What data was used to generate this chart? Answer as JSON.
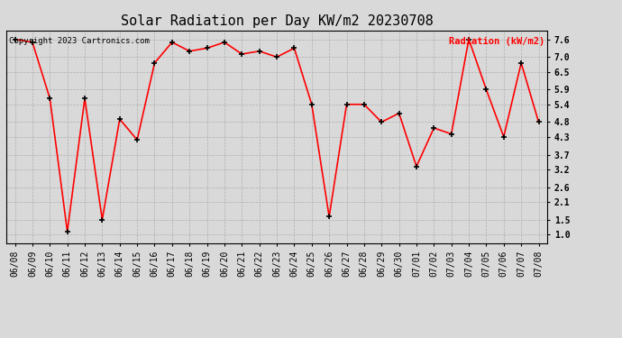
{
  "title": "Solar Radiation per Day KW/m2 20230708",
  "ylabel": "Radiation (kW/m2)",
  "copyright_text": "Copyright 2023 Cartronics.com",
  "dates": [
    "06/08",
    "06/09",
    "06/10",
    "06/11",
    "06/12",
    "06/13",
    "06/14",
    "06/15",
    "06/16",
    "06/17",
    "06/18",
    "06/19",
    "06/20",
    "06/21",
    "06/22",
    "06/23",
    "06/24",
    "06/25",
    "06/26",
    "06/27",
    "06/28",
    "06/29",
    "06/30",
    "07/01",
    "07/02",
    "07/03",
    "07/04",
    "07/05",
    "07/06",
    "07/07",
    "07/08"
  ],
  "values": [
    7.6,
    7.5,
    5.6,
    1.1,
    5.6,
    1.5,
    4.9,
    4.2,
    6.8,
    7.5,
    7.2,
    7.3,
    7.5,
    7.1,
    7.2,
    7.0,
    7.3,
    5.4,
    1.6,
    5.4,
    5.4,
    4.8,
    5.1,
    3.3,
    4.6,
    4.4,
    7.6,
    5.9,
    4.3,
    6.8,
    4.8
  ],
  "ylim": [
    0.7,
    7.9
  ],
  "yticks": [
    1.0,
    1.5,
    2.1,
    2.6,
    3.2,
    3.7,
    4.3,
    4.8,
    5.4,
    5.9,
    6.5,
    7.0,
    7.6
  ],
  "line_color": "red",
  "marker_color": "black",
  "background_color": "#d9d9d9",
  "grid_color": "#aaaaaa",
  "title_fontsize": 11,
  "label_fontsize": 7.5,
  "tick_fontsize": 7,
  "copyright_fontsize": 6.5
}
